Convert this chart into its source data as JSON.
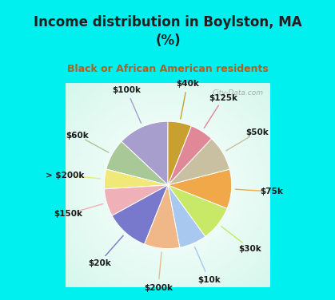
{
  "title": "Income distribution in Boylston, MA\n(%)",
  "subtitle": "Black or African American residents",
  "labels": [
    "$100k",
    "$60k",
    "> $200k",
    "$150k",
    "$20k",
    "$200k",
    "$10k",
    "$30k",
    "$75k",
    "$50k",
    "$125k",
    "$40k"
  ],
  "values": [
    13,
    8,
    5,
    7,
    11,
    9,
    7,
    9,
    10,
    9,
    6,
    6
  ],
  "colors": [
    "#a89ece",
    "#a8c898",
    "#f0e878",
    "#f0b0b8",
    "#7878cc",
    "#f0b888",
    "#a8c8f0",
    "#c8e868",
    "#f0a848",
    "#c8c0a0",
    "#e08898",
    "#c8a030"
  ],
  "bg_cyan": "#00f0f0",
  "bg_chart": "#e0f5e8",
  "title_color": "#202020",
  "subtitle_color": "#b06020",
  "watermark": "City-Data.com",
  "startangle": 90,
  "label_fontsize": 7.5,
  "title_fontsize": 12,
  "subtitle_fontsize": 9
}
